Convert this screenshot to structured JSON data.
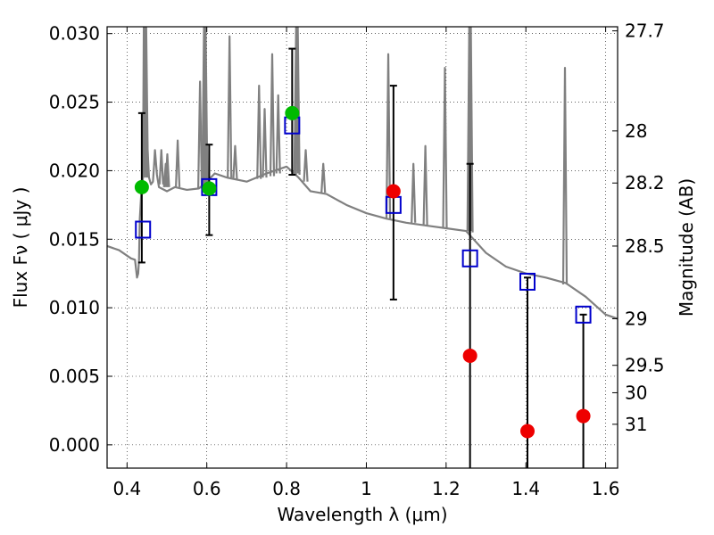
{
  "chart_data": {
    "type": "scatter",
    "xlabel": "Wavelength  λ (μm)",
    "ylabel": "Flux  Fν  ( μJy )",
    "y2label": "Magnitude (AB)",
    "xlim": [
      0.35,
      1.63
    ],
    "ylim": [
      -0.0017,
      0.0305
    ],
    "grid": true,
    "x_ticks": [
      0.4,
      0.6,
      0.8,
      1.0,
      1.2,
      1.4,
      1.6
    ],
    "x_tick_labels": [
      "0.4",
      "0.6",
      "0.8",
      "1",
      "1.2",
      "1.4",
      "1.6"
    ],
    "y_ticks": [
      0.0,
      0.005,
      0.01,
      0.015,
      0.02,
      0.025,
      0.03
    ],
    "y_tick_labels": [
      "0.000",
      "0.005",
      "0.010",
      "0.015",
      "0.020",
      "0.025",
      "0.030"
    ],
    "y2_ticks": [
      {
        "label": "27.7",
        "flux": 0.0302
      },
      {
        "label": "28",
        "flux": 0.0229
      },
      {
        "label": "28.2",
        "flux": 0.0191
      },
      {
        "label": "28.5",
        "flux": 0.0145
      },
      {
        "label": "29",
        "flux": 0.0092
      },
      {
        "label": "29.5",
        "flux": 0.0058
      },
      {
        "label": "30",
        "flux": 0.0038
      },
      {
        "label": "31",
        "flux": 0.0015
      }
    ],
    "series": [
      {
        "kind": "line",
        "color": "#808080",
        "x": [
          0.35,
          0.38,
          0.41,
          0.42,
          0.425,
          0.428,
          0.43,
          0.432,
          0.436,
          0.44,
          0.442,
          0.445,
          0.45,
          0.455,
          0.46,
          0.465,
          0.468,
          0.47,
          0.475,
          0.48,
          0.5,
          0.52,
          0.55,
          0.58,
          0.6,
          0.62,
          0.65,
          0.7,
          0.75,
          0.8,
          0.83,
          0.86,
          0.9,
          0.95,
          1.0,
          1.05,
          1.1,
          1.15,
          1.2,
          1.25,
          1.3,
          1.35,
          1.4,
          1.45,
          1.5,
          1.55,
          1.6,
          1.63
        ],
        "y": [
          0.0145,
          0.0142,
          0.0136,
          0.0135,
          0.0122,
          0.0125,
          0.0135,
          0.0165,
          0.0185,
          0.0195,
          0.0305,
          0.0305,
          0.0225,
          0.0195,
          0.019,
          0.0192,
          0.0205,
          0.0215,
          0.0197,
          0.0188,
          0.0185,
          0.0188,
          0.0186,
          0.0187,
          0.0192,
          0.0198,
          0.0195,
          0.0192,
          0.0198,
          0.0203,
          0.0195,
          0.0185,
          0.0183,
          0.0175,
          0.0169,
          0.0165,
          0.0162,
          0.016,
          0.0158,
          0.0156,
          0.014,
          0.013,
          0.0125,
          0.0122,
          0.0118,
          0.0108,
          0.0095,
          0.0092
        ]
      },
      {
        "kind": "line-spikes",
        "color": "#808080",
        "spikes": [
          {
            "x": 0.444,
            "base": 0.0195,
            "top": 0.0305
          },
          {
            "x": 0.448,
            "base": 0.0195,
            "top": 0.0305
          },
          {
            "x": 0.486,
            "base": 0.019,
            "top": 0.0215
          },
          {
            "x": 0.497,
            "base": 0.0188,
            "top": 0.0205
          },
          {
            "x": 0.501,
            "base": 0.0188,
            "top": 0.0212
          },
          {
            "x": 0.527,
            "base": 0.0188,
            "top": 0.0222
          },
          {
            "x": 0.583,
            "base": 0.0187,
            "top": 0.0265
          },
          {
            "x": 0.593,
            "base": 0.0188,
            "top": 0.0305
          },
          {
            "x": 0.597,
            "base": 0.0189,
            "top": 0.0305
          },
          {
            "x": 0.657,
            "base": 0.0195,
            "top": 0.0298
          },
          {
            "x": 0.671,
            "base": 0.0194,
            "top": 0.0218
          },
          {
            "x": 0.731,
            "base": 0.0194,
            "top": 0.0262
          },
          {
            "x": 0.745,
            "base": 0.0195,
            "top": 0.0245
          },
          {
            "x": 0.764,
            "base": 0.0196,
            "top": 0.0285
          },
          {
            "x": 0.779,
            "base": 0.0198,
            "top": 0.0255
          },
          {
            "x": 0.824,
            "base": 0.0198,
            "top": 0.0305
          },
          {
            "x": 0.828,
            "base": 0.0197,
            "top": 0.0305
          },
          {
            "x": 0.848,
            "base": 0.0192,
            "top": 0.0215
          },
          {
            "x": 0.892,
            "base": 0.0184,
            "top": 0.0205
          },
          {
            "x": 1.055,
            "base": 0.0165,
            "top": 0.0285
          },
          {
            "x": 1.118,
            "base": 0.0162,
            "top": 0.0205
          },
          {
            "x": 1.148,
            "base": 0.016,
            "top": 0.0218
          },
          {
            "x": 1.197,
            "base": 0.0158,
            "top": 0.0275
          },
          {
            "x": 1.258,
            "base": 0.0156,
            "top": 0.0305
          },
          {
            "x": 1.262,
            "base": 0.0155,
            "top": 0.0305
          },
          {
            "x": 1.498,
            "base": 0.0117,
            "top": 0.0275
          }
        ]
      },
      {
        "kind": "errorbar",
        "color": "#000000",
        "points": [
          {
            "x": 0.437,
            "y": 0.0188,
            "lo": 0.0133,
            "hi": 0.0242
          },
          {
            "x": 0.606,
            "y": 0.0187,
            "lo": 0.0153,
            "hi": 0.0219
          },
          {
            "x": 0.814,
            "y": 0.0242,
            "lo": 0.0197,
            "hi": 0.0289
          },
          {
            "x": 1.068,
            "y": 0.0185,
            "lo": 0.0106,
            "hi": 0.0262
          },
          {
            "x": 1.26,
            "y": 0.0065,
            "lo": -0.0017,
            "hi": 0.0205
          },
          {
            "x": 1.404,
            "y": 0.001,
            "lo": -0.0017,
            "hi": 0.0122
          },
          {
            "x": 1.544,
            "y": 0.0021,
            "lo": -0.0017,
            "hi": 0.0095
          }
        ]
      },
      {
        "kind": "markers-square",
        "color": "#0000cc",
        "x": [
          0.44,
          0.606,
          0.814,
          1.068,
          1.26,
          1.404,
          1.544
        ],
        "y": [
          0.0157,
          0.0188,
          0.0233,
          0.0175,
          0.0136,
          0.0119,
          0.0095
        ]
      },
      {
        "kind": "markers-circle",
        "color": "#00bb00",
        "x": [
          0.437,
          0.606,
          0.814
        ],
        "y": [
          0.0188,
          0.0187,
          0.0242
        ]
      },
      {
        "kind": "markers-circle",
        "color": "#ee0000",
        "x": [
          1.068,
          1.26,
          1.404,
          1.544
        ],
        "y": [
          0.0185,
          0.0065,
          0.001,
          0.0021
        ]
      }
    ]
  }
}
